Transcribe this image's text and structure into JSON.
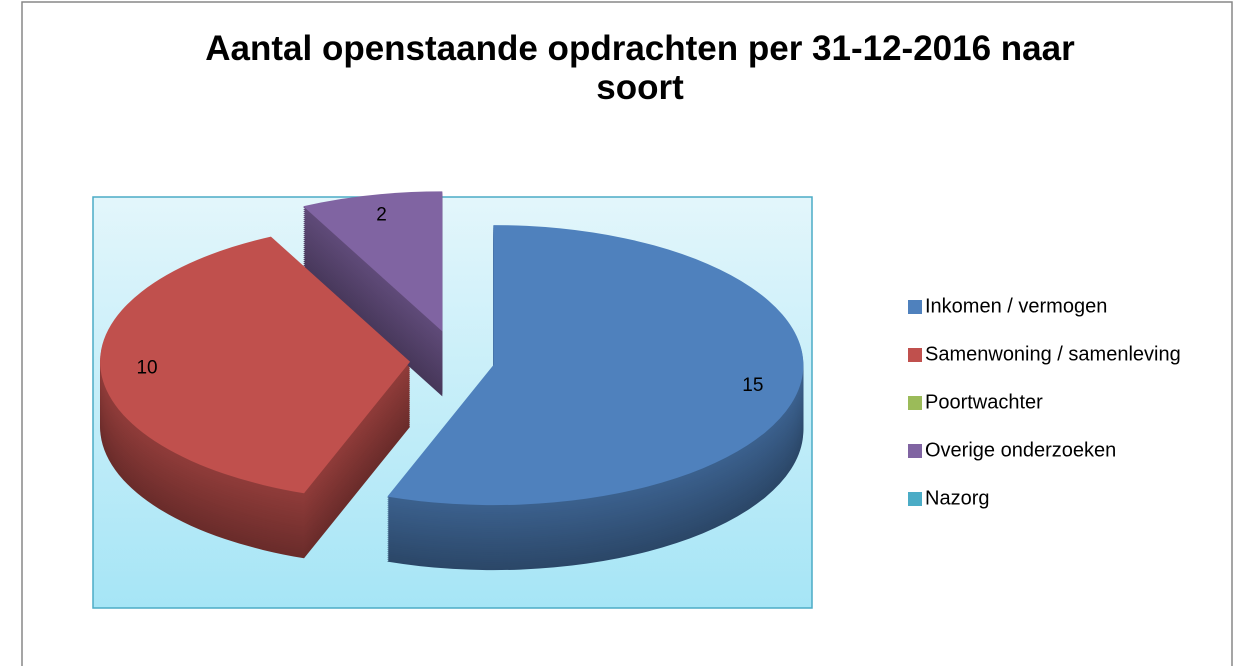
{
  "chart_data": {
    "type": "pie",
    "title": "Aantal openstaande opdrachten per 31-12-2016 naar soort",
    "categories": [
      "Inkomen / vermogen",
      "Samenwoning / samenleving",
      "Poortwachter",
      "Overige onderzoeken",
      "Nazorg"
    ],
    "values": [
      15,
      10,
      0,
      2,
      0
    ],
    "colors": [
      "#4f81bd",
      "#c0504d",
      "#9bbb59",
      "#8064a2",
      "#4bacc6"
    ],
    "legend": "right",
    "exploded": true,
    "three_d": true
  }
}
